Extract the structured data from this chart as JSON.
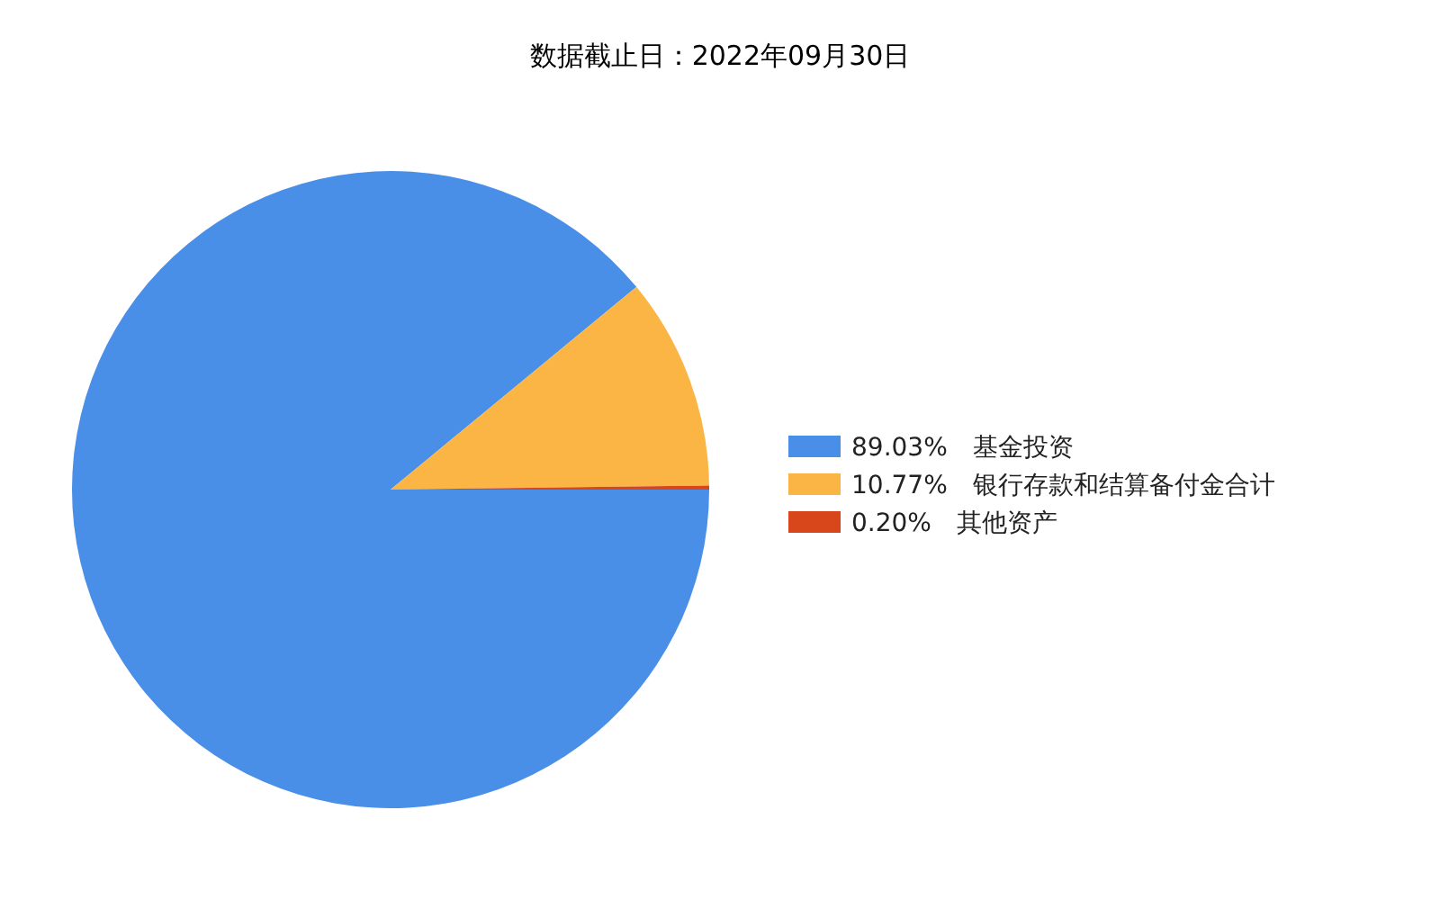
{
  "chart_data": {
    "type": "pie",
    "title": "数据截止日：2022年09月30日",
    "categories": [
      "基金投资",
      "银行存款和结算备付金合计",
      "其他资产"
    ],
    "values": [
      89.03,
      10.77,
      0.2
    ],
    "value_labels": [
      "89.03%",
      "10.77%",
      "0.20%"
    ],
    "colors": [
      "#4a8fe7",
      "#fbb544",
      "#d8461b"
    ],
    "legend": "right"
  }
}
